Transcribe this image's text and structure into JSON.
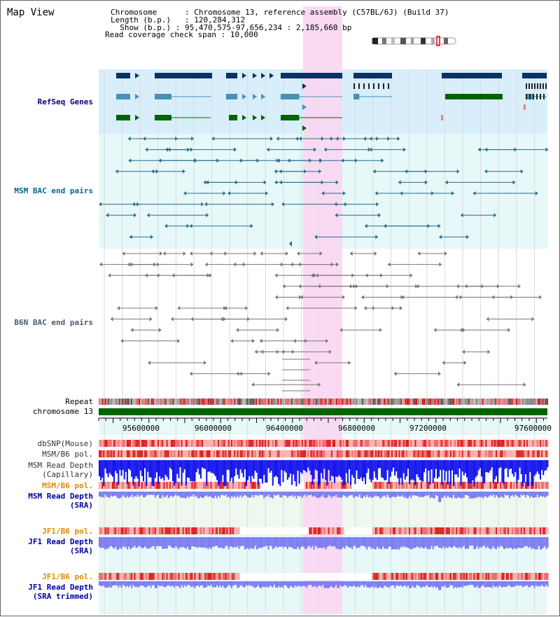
{
  "header": {
    "title": "Map View",
    "chromosome_key": "Chromosome",
    "chromosome_value": "Chromosome 13, reference assembly (C57BL/6J) (Build 37)",
    "length_key": "Length (b.p.)",
    "length_value": "120,284,312",
    "show_key": "Show (b.p.)",
    "show_value": "95,470,575-97,656,234 : 2,185,660 bp",
    "coverage_key": "Read coverage check span",
    "coverage_value": "10,000"
  },
  "tracks": {
    "refseq": "RefSeq Genes",
    "msm_bac": "MSM BAC end pairs",
    "b6n_bac": "B6N BAC end pairs",
    "repeat": "Repeat",
    "chromosome": "chromosome 13",
    "dbsnp": "dbSNP(Mouse)",
    "msm_b6_pol_1": "MSM/B6 pol.",
    "msm_depth_cap_1": "MSM Read Depth",
    "msm_depth_cap_2": "(Capillary)",
    "msm_b6_pol_2": "MSM/B6 pol.",
    "msm_depth_sra_1": "MSM Read Depth",
    "msm_depth_sra_2": "(SRA)",
    "jf1_b6_pol_1": "JF1/B6 pol.",
    "jf1_depth_sra_1": "JF1 Read Depth",
    "jf1_depth_sra_2": "(SRA)",
    "jf1_b6_pol_2": "JF1/B6 pol.",
    "jf1_depth_trim_1": "JF1 Read Depth",
    "jf1_depth_trim_2": "(SRA trimmed)"
  },
  "axis": {
    "ticks": [
      "95600000",
      "96000000",
      "96400000",
      "96800000",
      "97200000",
      "97600000"
    ]
  },
  "colors": {
    "refseq_bg": "#d8eefb",
    "msm_bg": "#e6f8f8",
    "b6n_bg": "#ffffff",
    "highlight": "#f9d6f2",
    "gene_dark": "#0a3264",
    "gene_mid": "#4a90b8",
    "gene_green": "#006400",
    "msm_line": "#2a6a8a",
    "b6n_line": "#777777",
    "chromosome_bar": "#006400",
    "label_refseq": "#00008b",
    "label_msm": "#006b8b",
    "label_b6n": "#4a5a6a",
    "label_orange": "#e08a00",
    "label_blue": "#0000aa"
  }
}
